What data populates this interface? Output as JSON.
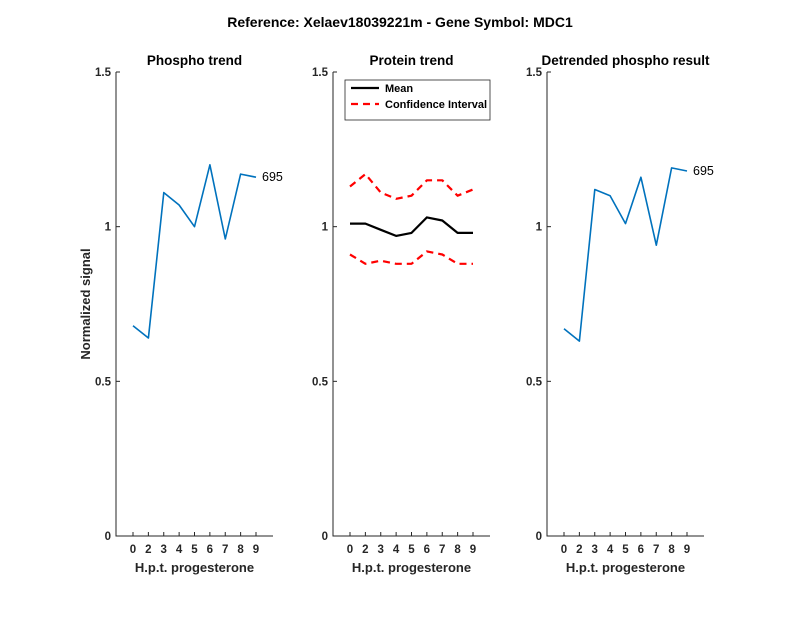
{
  "figure": {
    "title": "Reference:  Xelaev18039221m - Gene Symbol:  MDC1"
  },
  "chart_data": [
    {
      "type": "line",
      "title": "Phospho trend",
      "xlabel": "H.p.t. progesterone",
      "ylabel": "Normalized signal",
      "categories": [
        "0",
        "2",
        "3",
        "4",
        "5",
        "6",
        "7",
        "8",
        "9"
      ],
      "ylim": [
        0,
        1.5
      ],
      "yticks": [
        "0",
        "0.5",
        "1",
        "1.5"
      ],
      "grid": false,
      "series": [
        {
          "color": "#0072BD",
          "style": "solid",
          "values": [
            0.68,
            0.64,
            1.11,
            1.07,
            1.0,
            1.2,
            0.96,
            1.17,
            1.16
          ]
        }
      ],
      "annotation": {
        "text": "695",
        "at_index": 8
      }
    },
    {
      "type": "line",
      "title": "Protein trend",
      "xlabel": "H.p.t. progesterone",
      "ylabel": "",
      "categories": [
        "0",
        "2",
        "3",
        "4",
        "5",
        "6",
        "7",
        "8",
        "9"
      ],
      "ylim": [
        0,
        1.5
      ],
      "yticks": [
        "0",
        "0.5",
        "1",
        "1.5"
      ],
      "grid": false,
      "legend": {
        "placement": "top"
      },
      "series": [
        {
          "name": "Mean",
          "color": "#000000",
          "style": "solid",
          "values": [
            1.01,
            1.01,
            0.99,
            0.97,
            0.98,
            1.03,
            1.02,
            0.98,
            0.98
          ]
        },
        {
          "name": "Confidence Interval",
          "color": "#FF0000",
          "style": "dashed",
          "values": [
            1.13,
            1.17,
            1.11,
            1.09,
            1.1,
            1.15,
            1.15,
            1.1,
            1.12
          ]
        },
        {
          "color": "#FF0000",
          "style": "dashed",
          "legend": false,
          "values": [
            0.91,
            0.88,
            0.89,
            0.88,
            0.88,
            0.92,
            0.91,
            0.88,
            0.88
          ]
        }
      ]
    },
    {
      "type": "line",
      "title": "Detrended phospho result",
      "xlabel": "H.p.t. progesterone",
      "ylabel": "",
      "categories": [
        "0",
        "2",
        "3",
        "4",
        "5",
        "6",
        "7",
        "8",
        "9"
      ],
      "ylim": [
        0,
        1.5
      ],
      "yticks": [
        "0",
        "0.5",
        "1",
        "1.5"
      ],
      "grid": false,
      "series": [
        {
          "color": "#0072BD",
          "style": "solid",
          "values": [
            0.67,
            0.63,
            1.12,
            1.1,
            1.01,
            1.16,
            0.94,
            1.19,
            1.18
          ]
        }
      ],
      "annotation": {
        "text": "695",
        "at_index": 8
      }
    }
  ]
}
